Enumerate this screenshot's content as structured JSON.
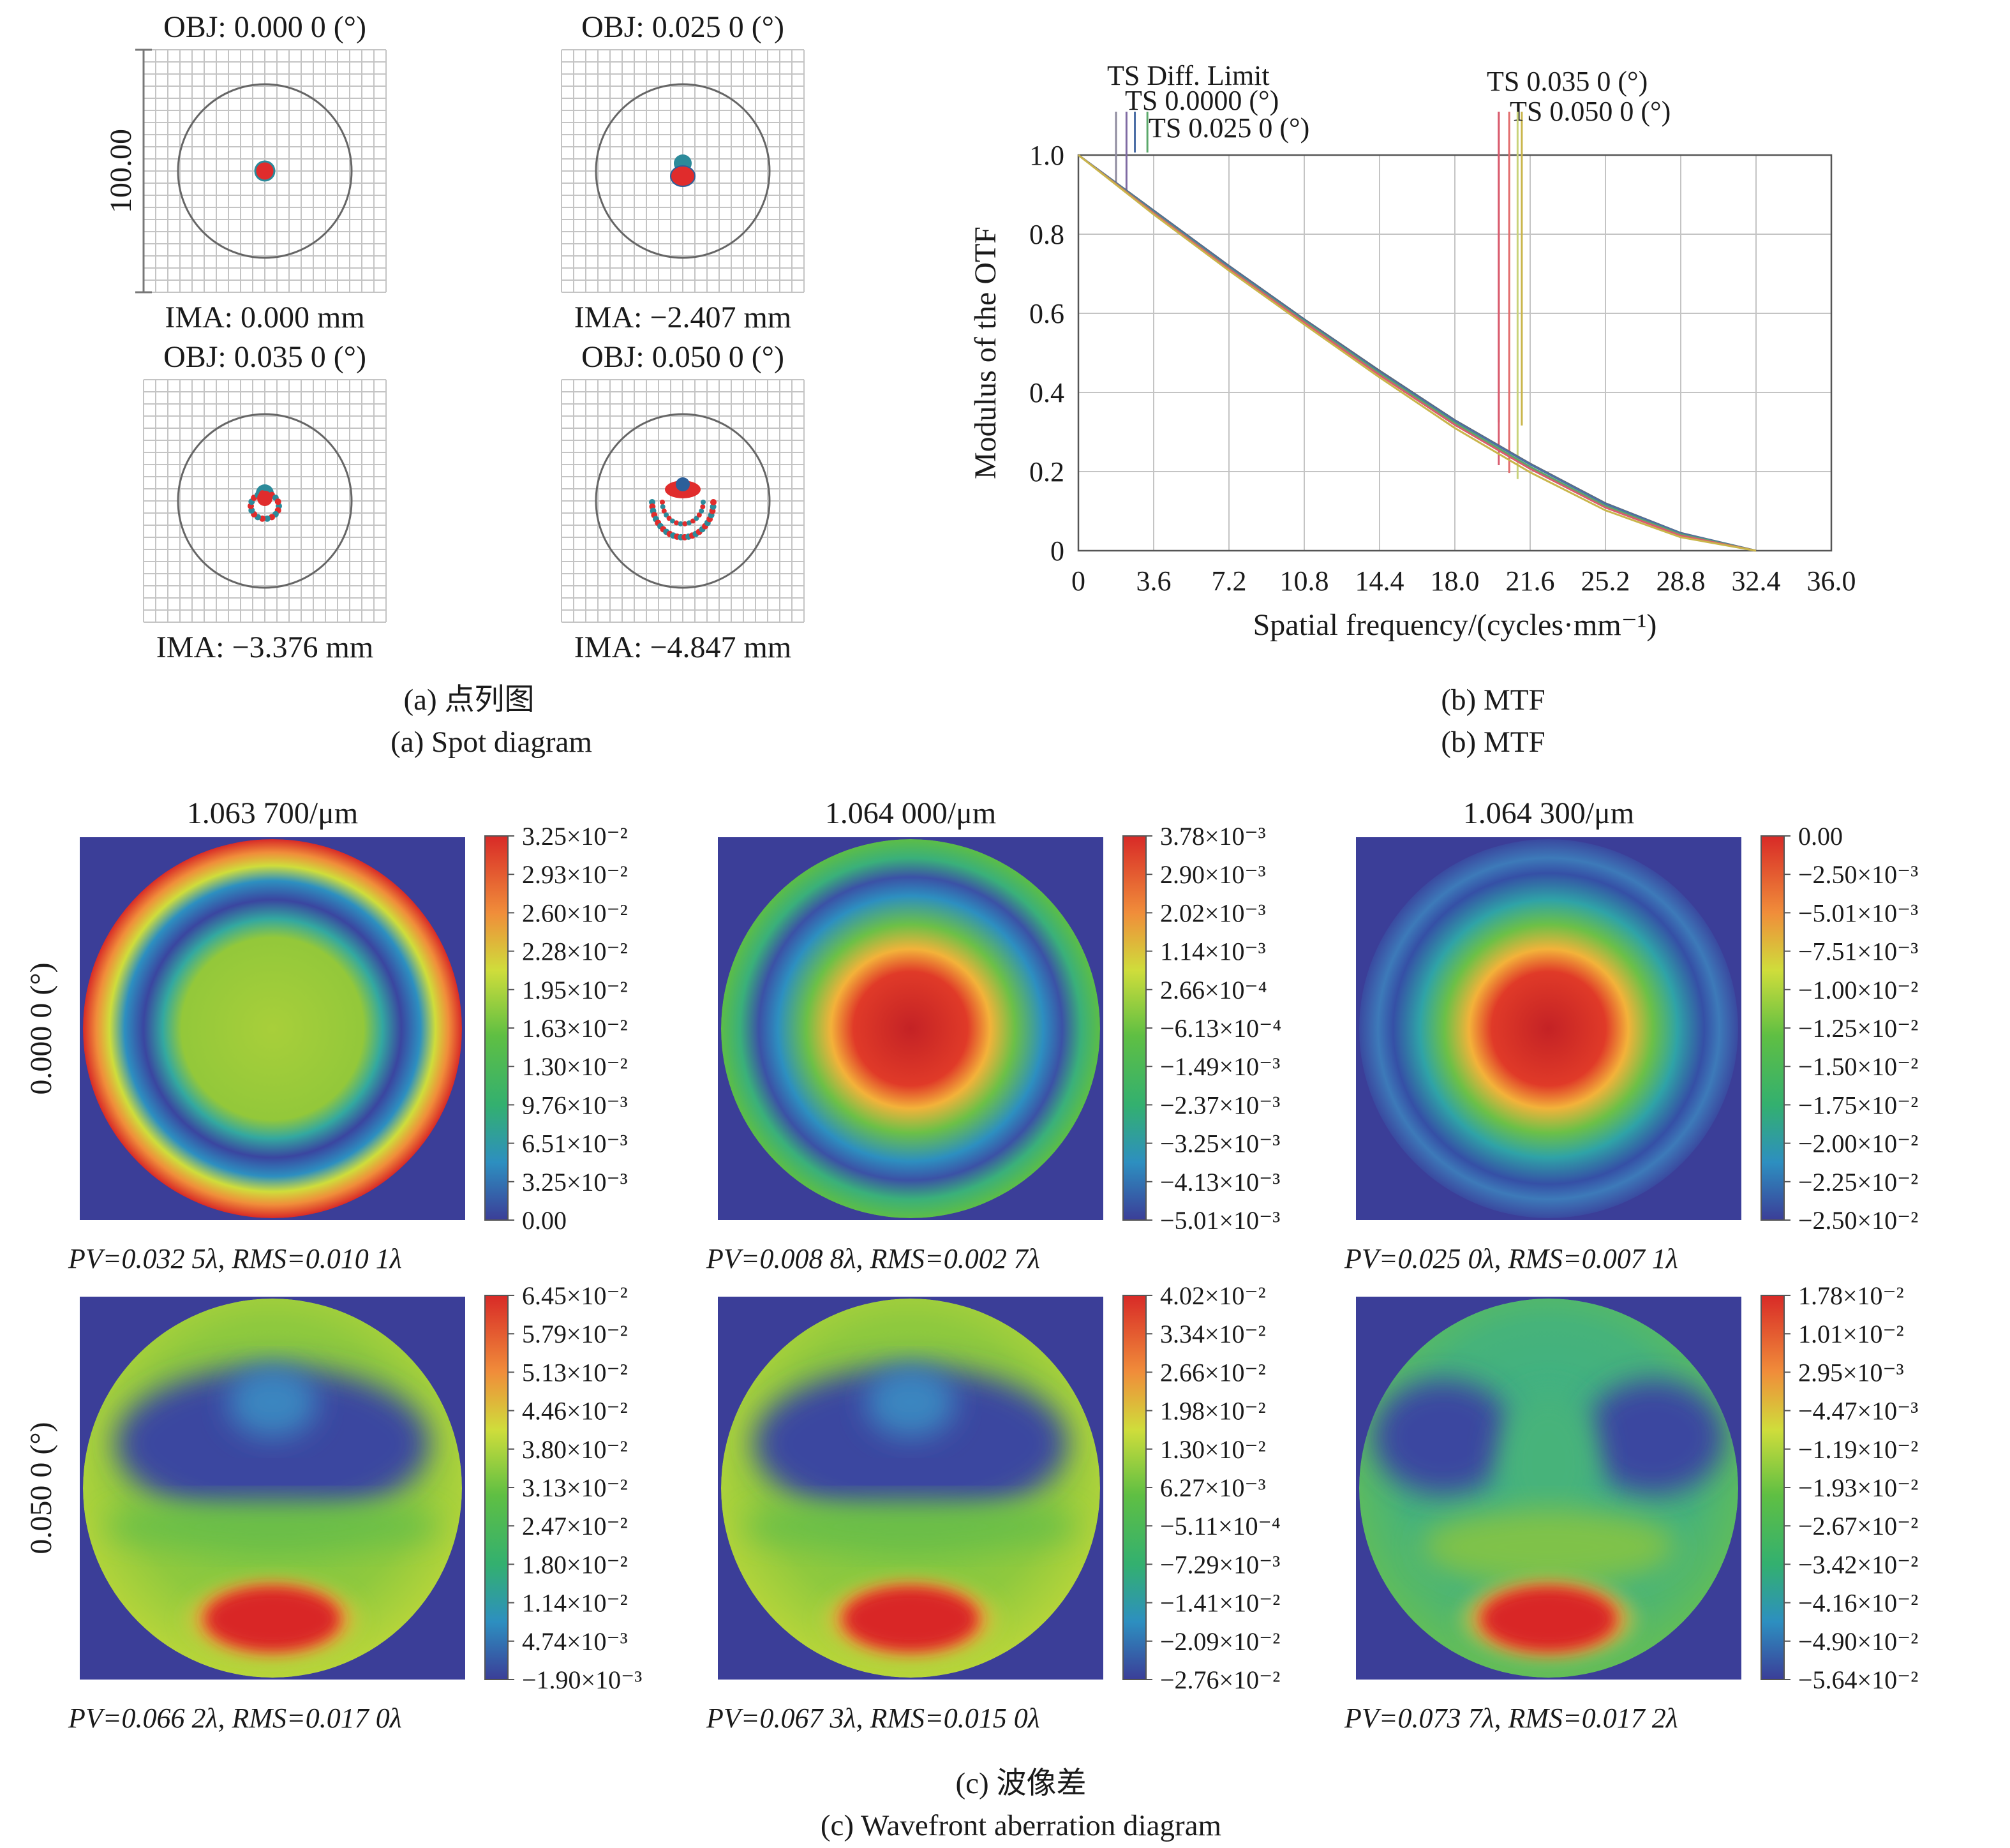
{
  "spot": {
    "scale_label": "100.00",
    "cells": [
      {
        "obj": "OBJ: 0.000 0 (°)",
        "ima": "IMA: 0.000 mm",
        "pattern": "dot"
      },
      {
        "obj": "OBJ: 0.025 0 (°)",
        "ima": "IMA: −2.407 mm",
        "pattern": "small"
      },
      {
        "obj": "OBJ: 0.035 0 (°)",
        "ima": "IMA: −3.376 mm",
        "pattern": "ring"
      },
      {
        "obj": "OBJ: 0.050 0 (°)",
        "ima": "IMA: −4.847 mm",
        "pattern": "wide"
      }
    ],
    "caption_cn": "(a) 点列图",
    "caption_en": "(a) Spot diagram"
  },
  "chart_data": {
    "type": "line",
    "xlabel": "Spatial frequency/(cycles·mm⁻¹)",
    "ylabel": "Modulus of the OTF",
    "xlim": [
      0,
      36
    ],
    "ylim": [
      0,
      1
    ],
    "xticks": [
      "0",
      "3.6",
      "7.2",
      "10.8",
      "14.4",
      "18.0",
      "21.6",
      "25.2",
      "28.8",
      "32.4",
      "36.0"
    ],
    "yticks": [
      "0",
      "0.2",
      "0.4",
      "0.6",
      "0.8",
      "1.0"
    ],
    "grid": true,
    "x": [
      0,
      3.6,
      7.2,
      10.8,
      14.4,
      18.0,
      21.6,
      25.2,
      28.8,
      32.4
    ],
    "series": [
      {
        "name": "TS Diff. Limit",
        "color": "#5e6a73",
        "values": [
          1.0,
          0.86,
          0.72,
          0.585,
          0.455,
          0.33,
          0.22,
          0.12,
          0.045,
          0.0
        ]
      },
      {
        "name": "TS 0.0000 (°)",
        "color": "#4d6fa6",
        "values": [
          1.0,
          0.858,
          0.718,
          0.583,
          0.452,
          0.328,
          0.218,
          0.118,
          0.044,
          0.0
        ]
      },
      {
        "name": "TS 0.025 0 (°)",
        "color": "#5aa86a",
        "values": [
          1.0,
          0.855,
          0.714,
          0.58,
          0.448,
          0.323,
          0.212,
          0.113,
          0.041,
          0.0
        ]
      },
      {
        "name": "TS 0.035 0 (°)",
        "color": "#d95b6e",
        "values": [
          1.0,
          0.853,
          0.712,
          0.577,
          0.444,
          0.318,
          0.207,
          0.109,
          0.038,
          0.0
        ]
      },
      {
        "name": "TS 0.050 0 (°)",
        "color": "#c9b54a",
        "values": [
          1.0,
          0.85,
          0.708,
          0.572,
          0.438,
          0.31,
          0.198,
          0.102,
          0.034,
          0.0
        ]
      }
    ],
    "legend_extra": [
      {
        "color": "#8e8a9e",
        "x": 1.8
      },
      {
        "color": "#7f6aa3",
        "x": 2.3
      },
      {
        "color": "#d95b6e",
        "x": 20.1
      },
      {
        "color": "#e26b6b",
        "x": 20.6
      },
      {
        "color": "#c9d27a",
        "x": 21.0
      }
    ],
    "caption_cn": "(b) MTF",
    "caption_en": "(b) MTF"
  },
  "wavefront": {
    "col_titles": [
      "1.063 700/μm",
      "1.064 000/μm",
      "1.064 300/μm"
    ],
    "row_labels": [
      "0.000 0 (°)",
      "0.050 0 (°)"
    ],
    "colors": [
      "#d82a27",
      "#f08d3a",
      "#cfdd3b",
      "#5fbf43",
      "#33b06f",
      "#2d8fc0",
      "#3b3e98"
    ],
    "panels": [
      {
        "type": "rings_a",
        "cb": [
          "3.25×10⁻²",
          "2.93×10⁻²",
          "2.60×10⁻²",
          "2.28×10⁻²",
          "1.95×10⁻²",
          "1.63×10⁻²",
          "1.30×10⁻²",
          "9.76×10⁻³",
          "6.51×10⁻³",
          "3.25×10⁻³",
          "0.00"
        ],
        "pv": "PV=0.032 5λ, RMS=0.010 1λ"
      },
      {
        "type": "rings_b",
        "cb": [
          "3.78×10⁻³",
          "2.90×10⁻³",
          "2.02×10⁻³",
          "1.14×10⁻³",
          "2.66×10⁻⁴",
          "−6.13×10⁻⁴",
          "−1.49×10⁻³",
          "−2.37×10⁻³",
          "−3.25×10⁻³",
          "−4.13×10⁻³",
          "−5.01×10⁻³"
        ],
        "pv": "PV=0.008 8λ, RMS=0.002 7λ"
      },
      {
        "type": "rings_c",
        "cb": [
          "0.00",
          "−2.50×10⁻³",
          "−5.01×10⁻³",
          "−7.51×10⁻³",
          "−1.00×10⁻²",
          "−1.25×10⁻²",
          "−1.50×10⁻²",
          "−1.75×10⁻²",
          "−2.00×10⁻²",
          "−2.25×10⁻²",
          "−2.50×10⁻²"
        ],
        "pv": "PV=0.025 0λ, RMS=0.007 1λ"
      },
      {
        "type": "field",
        "cb": [
          "6.45×10⁻²",
          "5.79×10⁻²",
          "5.13×10⁻²",
          "4.46×10⁻²",
          "3.80×10⁻²",
          "3.13×10⁻²",
          "2.47×10⁻²",
          "1.80×10⁻²",
          "1.14×10⁻²",
          "4.74×10⁻³",
          "−1.90×10⁻³"
        ],
        "pv": "PV=0.066 2λ, RMS=0.017 0λ"
      },
      {
        "type": "field",
        "cb": [
          "4.02×10⁻²",
          "3.34×10⁻²",
          "2.66×10⁻²",
          "1.98×10⁻²",
          "1.30×10⁻²",
          "6.27×10⁻³",
          "−5.11×10⁻⁴",
          "−7.29×10⁻³",
          "−1.41×10⁻²",
          "−2.09×10⁻²",
          "−2.76×10⁻²"
        ],
        "pv": "PV=0.067 3λ, RMS=0.015 0λ"
      },
      {
        "type": "field2",
        "cb": [
          "1.78×10⁻²",
          "1.01×10⁻²",
          "2.95×10⁻³",
          "−4.47×10⁻³",
          "−1.19×10⁻²",
          "−1.93×10⁻²",
          "−2.67×10⁻²",
          "−3.42×10⁻²",
          "−4.16×10⁻²",
          "−4.90×10⁻²",
          "−5.64×10⁻²"
        ],
        "pv": "PV=0.073 7λ, RMS=0.017 2λ"
      }
    ],
    "caption_cn": "(c) 波像差",
    "caption_en": "(c) Wavefront aberration diagram"
  }
}
